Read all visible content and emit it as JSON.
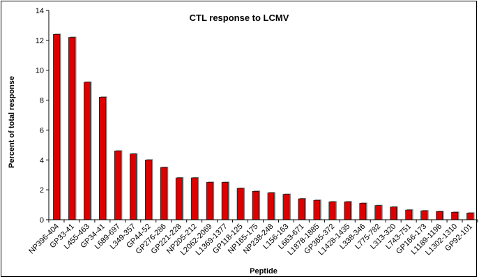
{
  "chart_data": {
    "type": "bar",
    "title": "CTL response to LCMV",
    "xlabel": "Peptide",
    "ylabel": "Percent of total response",
    "ylim": [
      0,
      14
    ],
    "yticks": [
      0,
      2,
      4,
      6,
      8,
      10,
      12,
      14
    ],
    "grid": false,
    "legend": "none",
    "bar_color": "#dd0000",
    "shadow_color": "#808080",
    "categories": [
      "NP396-404",
      "GP33-41",
      "L455-463",
      "GP34-41",
      "L689-697",
      "L349-357",
      "GP44-52",
      "GP276-286",
      "GP221-228",
      "NP205-212",
      "L2062-2069",
      "L1369-1377",
      "GP118-125",
      "NP165-175",
      "NP238-248",
      "L156-163",
      "L663-671",
      "L1878-1885",
      "GP365-372",
      "L1428-1435",
      "L338-346",
      "L775-782",
      "L313-320",
      "L743-751",
      "GP166-173",
      "L1189-1196",
      "L1302-1310",
      "GP92-101"
    ],
    "values": [
      12.4,
      12.2,
      9.2,
      8.2,
      4.6,
      4.4,
      4.0,
      3.5,
      2.8,
      2.8,
      2.5,
      2.5,
      2.1,
      1.9,
      1.8,
      1.7,
      1.4,
      1.3,
      1.2,
      1.2,
      1.1,
      0.95,
      0.85,
      0.65,
      0.6,
      0.55,
      0.5,
      0.45
    ]
  }
}
